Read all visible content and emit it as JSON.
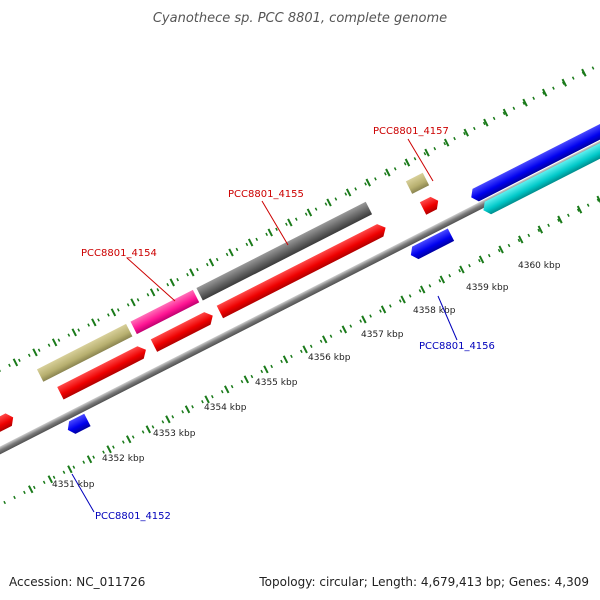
{
  "title": "Cyanothece sp. PCC 8801, complete genome",
  "footer": {
    "accession": "Accession: NC_011726",
    "summary": "Topology: circular; Length: 4,679,413 bp; Genes: 4,309"
  },
  "scale_labels": [
    "4351 kbp",
    "4352 kbp",
    "4353 kbp",
    "4354 kbp",
    "4355 kbp",
    "4356 kbp",
    "4357 kbp",
    "4358 kbp",
    "4359 kbp",
    "4360 kbp"
  ],
  "gene_labels": {
    "g4152": "PCC8801_4152",
    "g4154": "PCC8801_4154",
    "g4155": "PCC8801_4155",
    "g4156": "PCC8801_4156",
    "g4157": "PCC8801_4157"
  },
  "colors": {
    "backbone": "#888888",
    "tick": "#1a7a1a",
    "cds": "#ff0000",
    "forward_gene": "#e6a0a0",
    "reverse_gene": "#0000ff",
    "rna": "#00cccc",
    "misc_tan": "#b8b070",
    "misc_magenta": "#ff1493",
    "misc_gray": "#606060",
    "label_forward": "#cc0000",
    "label_reverse": "#0000bb"
  }
}
